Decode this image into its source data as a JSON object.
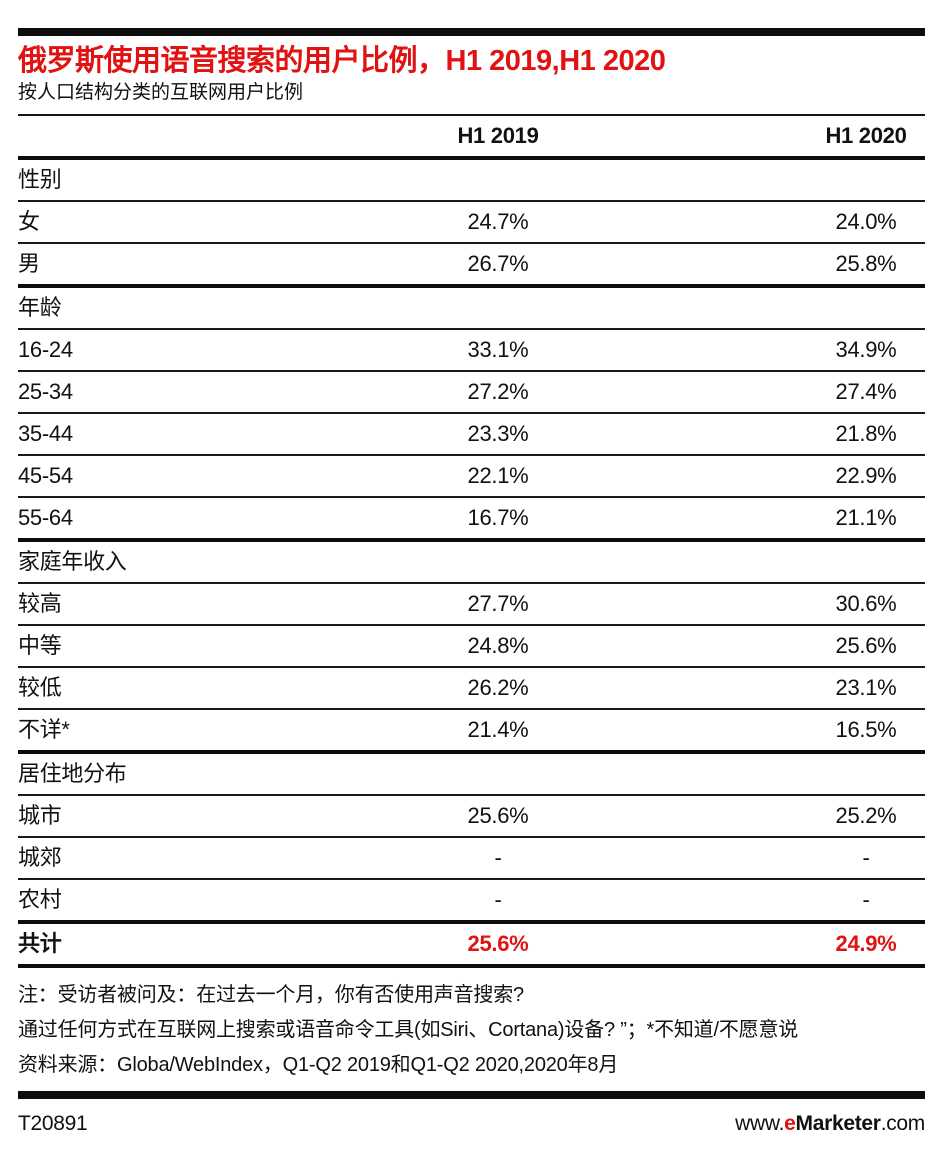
{
  "colors": {
    "accent_red": "#e01212",
    "text": "#111111"
  },
  "header": {
    "title": "俄罗斯使用语音搜索的用户比例，H1 2019,H1 2020",
    "subtitle": "按人口结构分类的互联网用户比例"
  },
  "table": {
    "columns": [
      "H1 2019",
      "H1 2020"
    ],
    "sections": [
      {
        "header": "性别",
        "rows": [
          {
            "label": "女",
            "v1": "24.7%",
            "v2": "24.0%"
          },
          {
            "label": "男",
            "v1": "26.7%",
            "v2": "25.8%"
          }
        ]
      },
      {
        "header": "年龄",
        "rows": [
          {
            "label": "16-24",
            "v1": "33.1%",
            "v2": "34.9%"
          },
          {
            "label": "25-34",
            "v1": "27.2%",
            "v2": "27.4%"
          },
          {
            "label": "35-44",
            "v1": "23.3%",
            "v2": "21.8%"
          },
          {
            "label": "45-54",
            "v1": "22.1%",
            "v2": "22.9%"
          },
          {
            "label": "55-64",
            "v1": "16.7%",
            "v2": "21.1%"
          }
        ]
      },
      {
        "header": "家庭年收入",
        "rows": [
          {
            "label": "较高",
            "v1": "27.7%",
            "v2": "30.6%"
          },
          {
            "label": "中等",
            "v1": "24.8%",
            "v2": "25.6%"
          },
          {
            "label": "较低",
            "v1": "26.2%",
            "v2": "23.1%"
          },
          {
            "label": "不详*",
            "v1": "21.4%",
            "v2": "16.5%"
          }
        ]
      },
      {
        "header": "居住地分布",
        "rows": [
          {
            "label": "城市",
            "v1": "25.6%",
            "v2": "25.2%"
          },
          {
            "label": "城郊",
            "v1": "-",
            "v2": "-"
          },
          {
            "label": "农村",
            "v1": "-",
            "v2": "-"
          }
        ]
      }
    ],
    "total": {
      "label": "共计",
      "v1": "25.6%",
      "v2": "24.9%"
    }
  },
  "notes": {
    "line1": "注：受访者被问及：在过去一个月，你有否使用声音搜索?",
    "line2": "通过任何方式在互联网上搜索或语音命令工具(如Siri、Cortana)设备? ”；*不知道/不愿意说",
    "line3": "资料来源：Globa/WebIndex，Q1-Q2 2019和Q1-Q2 2020,2020年8月"
  },
  "footer": {
    "doc_id": "T20891",
    "site": {
      "www": "www.",
      "e": "e",
      "brand": "Marketer",
      "tld": ".com"
    }
  },
  "chart_data": {
    "type": "table",
    "title": "俄罗斯使用语音搜索的用户比例，H1 2019,H1 2020",
    "subtitle": "按人口结构分类的互联网用户比例",
    "columns": [
      "H1 2019",
      "H1 2020"
    ],
    "value_unit": "%",
    "groups": [
      {
        "name": "性别",
        "rows": [
          {
            "label": "女",
            "values": [
              24.7,
              24.0
            ]
          },
          {
            "label": "男",
            "values": [
              26.7,
              25.8
            ]
          }
        ]
      },
      {
        "name": "年龄",
        "rows": [
          {
            "label": "16-24",
            "values": [
              33.1,
              34.9
            ]
          },
          {
            "label": "25-34",
            "values": [
              27.2,
              27.4
            ]
          },
          {
            "label": "35-44",
            "values": [
              23.3,
              21.8
            ]
          },
          {
            "label": "45-54",
            "values": [
              22.1,
              22.9
            ]
          },
          {
            "label": "55-64",
            "values": [
              16.7,
              21.1
            ]
          }
        ]
      },
      {
        "name": "家庭年收入",
        "rows": [
          {
            "label": "较高",
            "values": [
              27.7,
              30.6
            ]
          },
          {
            "label": "中等",
            "values": [
              24.8,
              25.6
            ]
          },
          {
            "label": "较低",
            "values": [
              26.2,
              23.1
            ]
          },
          {
            "label": "不详*",
            "values": [
              21.4,
              16.5
            ]
          }
        ]
      },
      {
        "name": "居住地分布",
        "rows": [
          {
            "label": "城市",
            "values": [
              25.6,
              25.2
            ]
          },
          {
            "label": "城郊",
            "values": [
              null,
              null
            ]
          },
          {
            "label": "农村",
            "values": [
              null,
              null
            ]
          }
        ]
      }
    ],
    "total": {
      "label": "共计",
      "values": [
        25.6,
        24.9
      ]
    }
  }
}
